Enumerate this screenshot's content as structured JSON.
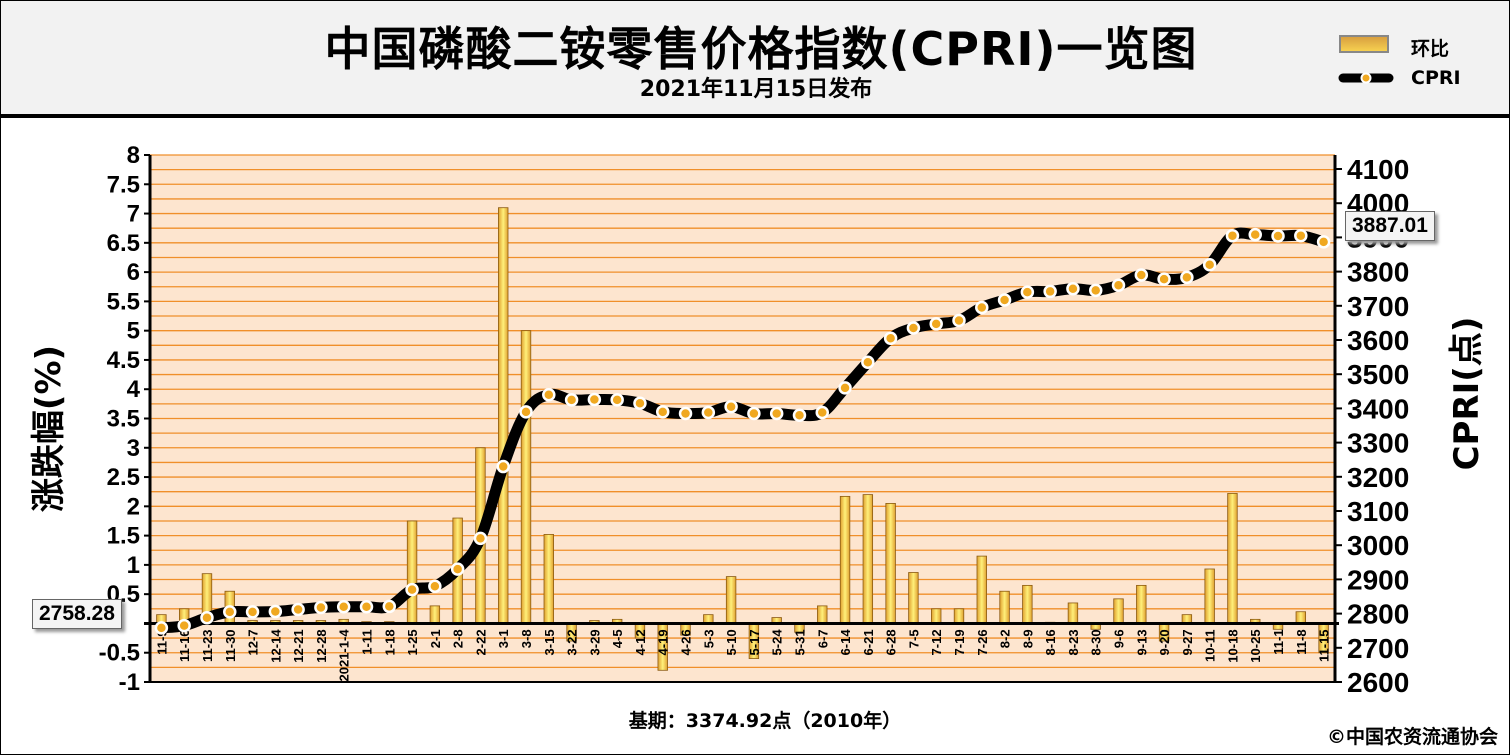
{
  "header": {
    "title": "中国磷酸二铵零售价格指数(CPRI)一览图",
    "subtitle": "2021年11月15日发布"
  },
  "legend": {
    "bar_label": "环比",
    "line_label": "CPRI"
  },
  "footer": {
    "base": "基期：3374.92点（2010年）",
    "copyright": "©中国农资流通协会"
  },
  "callouts": {
    "start": "2758.28",
    "end": "3887.01"
  },
  "colors": {
    "bar": "#e0a030",
    "bar_highlight": "#fff07a",
    "grid": "#f08f2a",
    "plot_bg": "#fde5cf",
    "line": "#000000",
    "marker": "#f0a820"
  },
  "chart_data": {
    "type": "bar",
    "ylabel": "涨跌幅(%)",
    "y2label": "CPRI(点)",
    "ylim": [
      -1,
      8
    ],
    "y2lim": [
      2600,
      4150
    ],
    "yticks": [
      "8",
      "7.5",
      "7",
      "6.5",
      "6",
      "5.5",
      "5",
      "4.5",
      "4",
      "3.5",
      "3",
      "2.5",
      "2",
      "1.5",
      "1",
      "0.5",
      "",
      "-0.5",
      "-1"
    ],
    "y2ticks": [
      "4100",
      "4000",
      "3900",
      "3800",
      "3700",
      "3600",
      "3500",
      "3400",
      "3300",
      "3200",
      "3100",
      "3000",
      "2900",
      "2800",
      "2700",
      "2600"
    ],
    "categories": [
      "11-9",
      "11-16",
      "11-23",
      "11-30",
      "12-7",
      "12-14",
      "12-21",
      "12-28",
      "2021-1-4",
      "1-11",
      "1-18",
      "1-25",
      "2-1",
      "2-8",
      "2-22",
      "3-1",
      "3-8",
      "3-15",
      "3-22",
      "3-29",
      "4-5",
      "4-12",
      "4-19",
      "4-26",
      "5-3",
      "5-10",
      "5-17",
      "5-24",
      "5-31",
      "6-7",
      "6-14",
      "6-21",
      "6-28",
      "7-5",
      "7-12",
      "7-19",
      "7-26",
      "8-2",
      "8-9",
      "8-16",
      "8-23",
      "8-30",
      "9-6",
      "9-13",
      "9-20",
      "9-27",
      "10-11",
      "10-18",
      "10-25",
      "11-1",
      "11-8",
      "11-15"
    ],
    "series": [
      {
        "name": "环比",
        "type": "bar",
        "axis": "left",
        "values": [
          0.15,
          0.25,
          0.85,
          0.55,
          0.05,
          0.05,
          0.05,
          0.05,
          0.07,
          0.03,
          0.03,
          1.75,
          0.3,
          1.8,
          3.0,
          7.1,
          5.0,
          1.52,
          -0.3,
          0.05,
          0.07,
          -0.25,
          -0.8,
          -0.2,
          0.15,
          0.8,
          -0.6,
          0.1,
          -0.15,
          0.3,
          2.17,
          2.2,
          2.05,
          0.87,
          0.25,
          0.25,
          1.15,
          0.55,
          0.65,
          0.02,
          0.35,
          -0.1,
          0.42,
          0.65,
          -0.3,
          0.15,
          0.93,
          2.22,
          0.07,
          -0.1,
          0.2,
          -0.5
        ]
      },
      {
        "name": "CPRI",
        "type": "line",
        "axis": "right",
        "values": [
          2758.28,
          2765,
          2788,
          2805,
          2805,
          2806,
          2812,
          2818,
          2820,
          2820,
          2821,
          2870,
          2880,
          2930,
          3020,
          3230,
          3390,
          3440,
          3425,
          3426,
          3425,
          3415,
          3390,
          3385,
          3388,
          3405,
          3385,
          3385,
          3380,
          3388,
          3460,
          3535,
          3605,
          3635,
          3647,
          3657,
          3695,
          3717,
          3740,
          3742,
          3750,
          3745,
          3760,
          3790,
          3778,
          3783,
          3820,
          3905,
          3908,
          3904,
          3905,
          3887.01
        ]
      }
    ]
  }
}
